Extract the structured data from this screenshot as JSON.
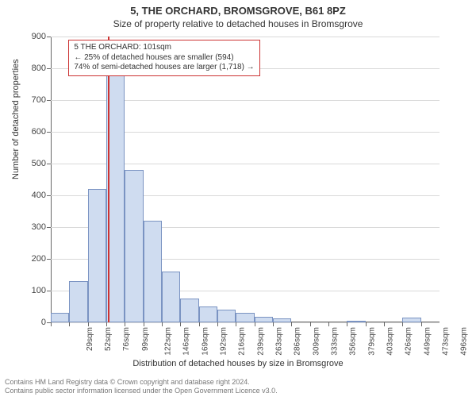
{
  "title": "5, THE ORCHARD, BROMSGROVE, B61 8PZ",
  "subtitle": "Size of property relative to detached houses in Bromsgrove",
  "chart": {
    "type": "histogram",
    "background_color": "#ffffff",
    "grid_color": "#d9d9d9",
    "axis_color": "#666666",
    "bar_fill": "#cfdcf0",
    "bar_border": "#7a93c2",
    "marker_color": "#cc3333",
    "annotation_border": "#cc3333",
    "ylim": [
      0,
      900
    ],
    "ytick_step": 100,
    "y_label": "Number of detached properties",
    "x_label": "Distribution of detached houses by size in Bromsgrove",
    "categories": [
      "29sqm",
      "52sqm",
      "76sqm",
      "99sqm",
      "122sqm",
      "146sqm",
      "169sqm",
      "192sqm",
      "216sqm",
      "239sqm",
      "263sqm",
      "286sqm",
      "309sqm",
      "333sqm",
      "356sqm",
      "379sqm",
      "403sqm",
      "426sqm",
      "449sqm",
      "473sqm",
      "496sqm"
    ],
    "values": [
      30,
      130,
      420,
      820,
      480,
      320,
      160,
      75,
      50,
      40,
      30,
      18,
      12,
      0,
      0,
      0,
      5,
      0,
      0,
      15,
      0
    ],
    "bar_width_ratio": 1.0,
    "marker_category_left_edge_index": 3,
    "marker_offset_within_bin": 0.1,
    "annotation": {
      "line1": "5 THE ORCHARD: 101sqm",
      "line2": "← 25% of detached houses are smaller (594)",
      "line3": "74% of semi-detached houses are larger (1,718) →"
    },
    "label_fontsize": 11,
    "tick_fontsize": 10
  },
  "footer": {
    "line1": "Contains HM Land Registry data © Crown copyright and database right 2024.",
    "line2": "Contains public sector information licensed under the Open Government Licence v3.0."
  }
}
